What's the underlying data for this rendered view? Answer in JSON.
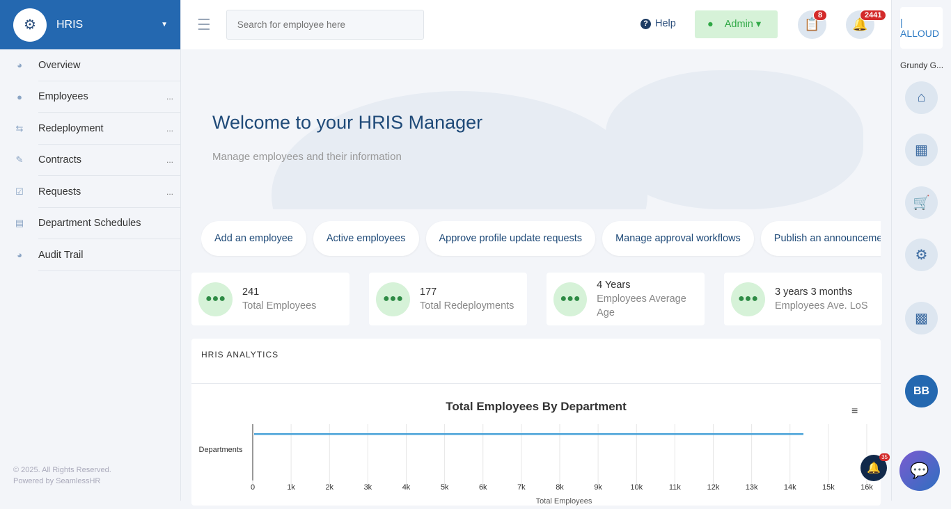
{
  "sidebar": {
    "brand": "HRIS",
    "items": [
      {
        "label": "Overview",
        "icon": "dashboard-icon",
        "more": ""
      },
      {
        "label": "Employees",
        "icon": "users-icon",
        "more": "..."
      },
      {
        "label": "Redeployment",
        "icon": "exchange-icon",
        "more": "..."
      },
      {
        "label": "Contracts",
        "icon": "user-edit-icon",
        "more": "..."
      },
      {
        "label": "Requests",
        "icon": "clipboard-check-icon",
        "more": "..."
      },
      {
        "label": "Department Schedules",
        "icon": "calendar-truck-icon",
        "more": ""
      },
      {
        "label": "Audit Trail",
        "icon": "dashboard-icon",
        "more": ""
      }
    ],
    "footer": [
      "© 2025. All Rights Reserved.",
      "Powered by SeamlessHR"
    ]
  },
  "topbar": {
    "search_placeholder": "Search for employee here",
    "help": "Help",
    "admin": "Admin",
    "clipboard_badge": "8",
    "bell_badge": "2441"
  },
  "right": {
    "logo": "| ALLOUD",
    "company": "Grundy G...",
    "avatar": "BB"
  },
  "hero": {
    "title": "Welcome to your HRIS Manager",
    "subtitle": "Manage employees and their information"
  },
  "actions": [
    "Add an employee",
    "Active employees",
    "Approve profile update requests",
    "Manage approval workflows",
    "Publish an announcement"
  ],
  "stats": [
    {
      "value": "241",
      "label": "Total Employees"
    },
    {
      "value": "177",
      "label": "Total Redeployments"
    },
    {
      "value": "4 Years",
      "label": "Employees Average Age"
    },
    {
      "value": "3 years 3 months",
      "label": "Employees Ave. LoS"
    }
  ],
  "panel": {
    "title": "HRIS ANALYTICS"
  },
  "float": {
    "bell_badge": "35"
  },
  "chart_data": {
    "type": "bar",
    "orientation": "horizontal",
    "title": "Total Employees By Department",
    "ylabel": "Departments",
    "xlabel": "Total Employees",
    "xlim": [
      0,
      16000
    ],
    "ticks": [
      "0",
      "1k",
      "2k",
      "3k",
      "4k",
      "5k",
      "6k",
      "7k",
      "8k",
      "9k",
      "10k",
      "11k",
      "12k",
      "13k",
      "14k",
      "15k",
      "16k"
    ],
    "values": [
      14350
    ],
    "color": "#4aa3d8",
    "grid": true
  }
}
